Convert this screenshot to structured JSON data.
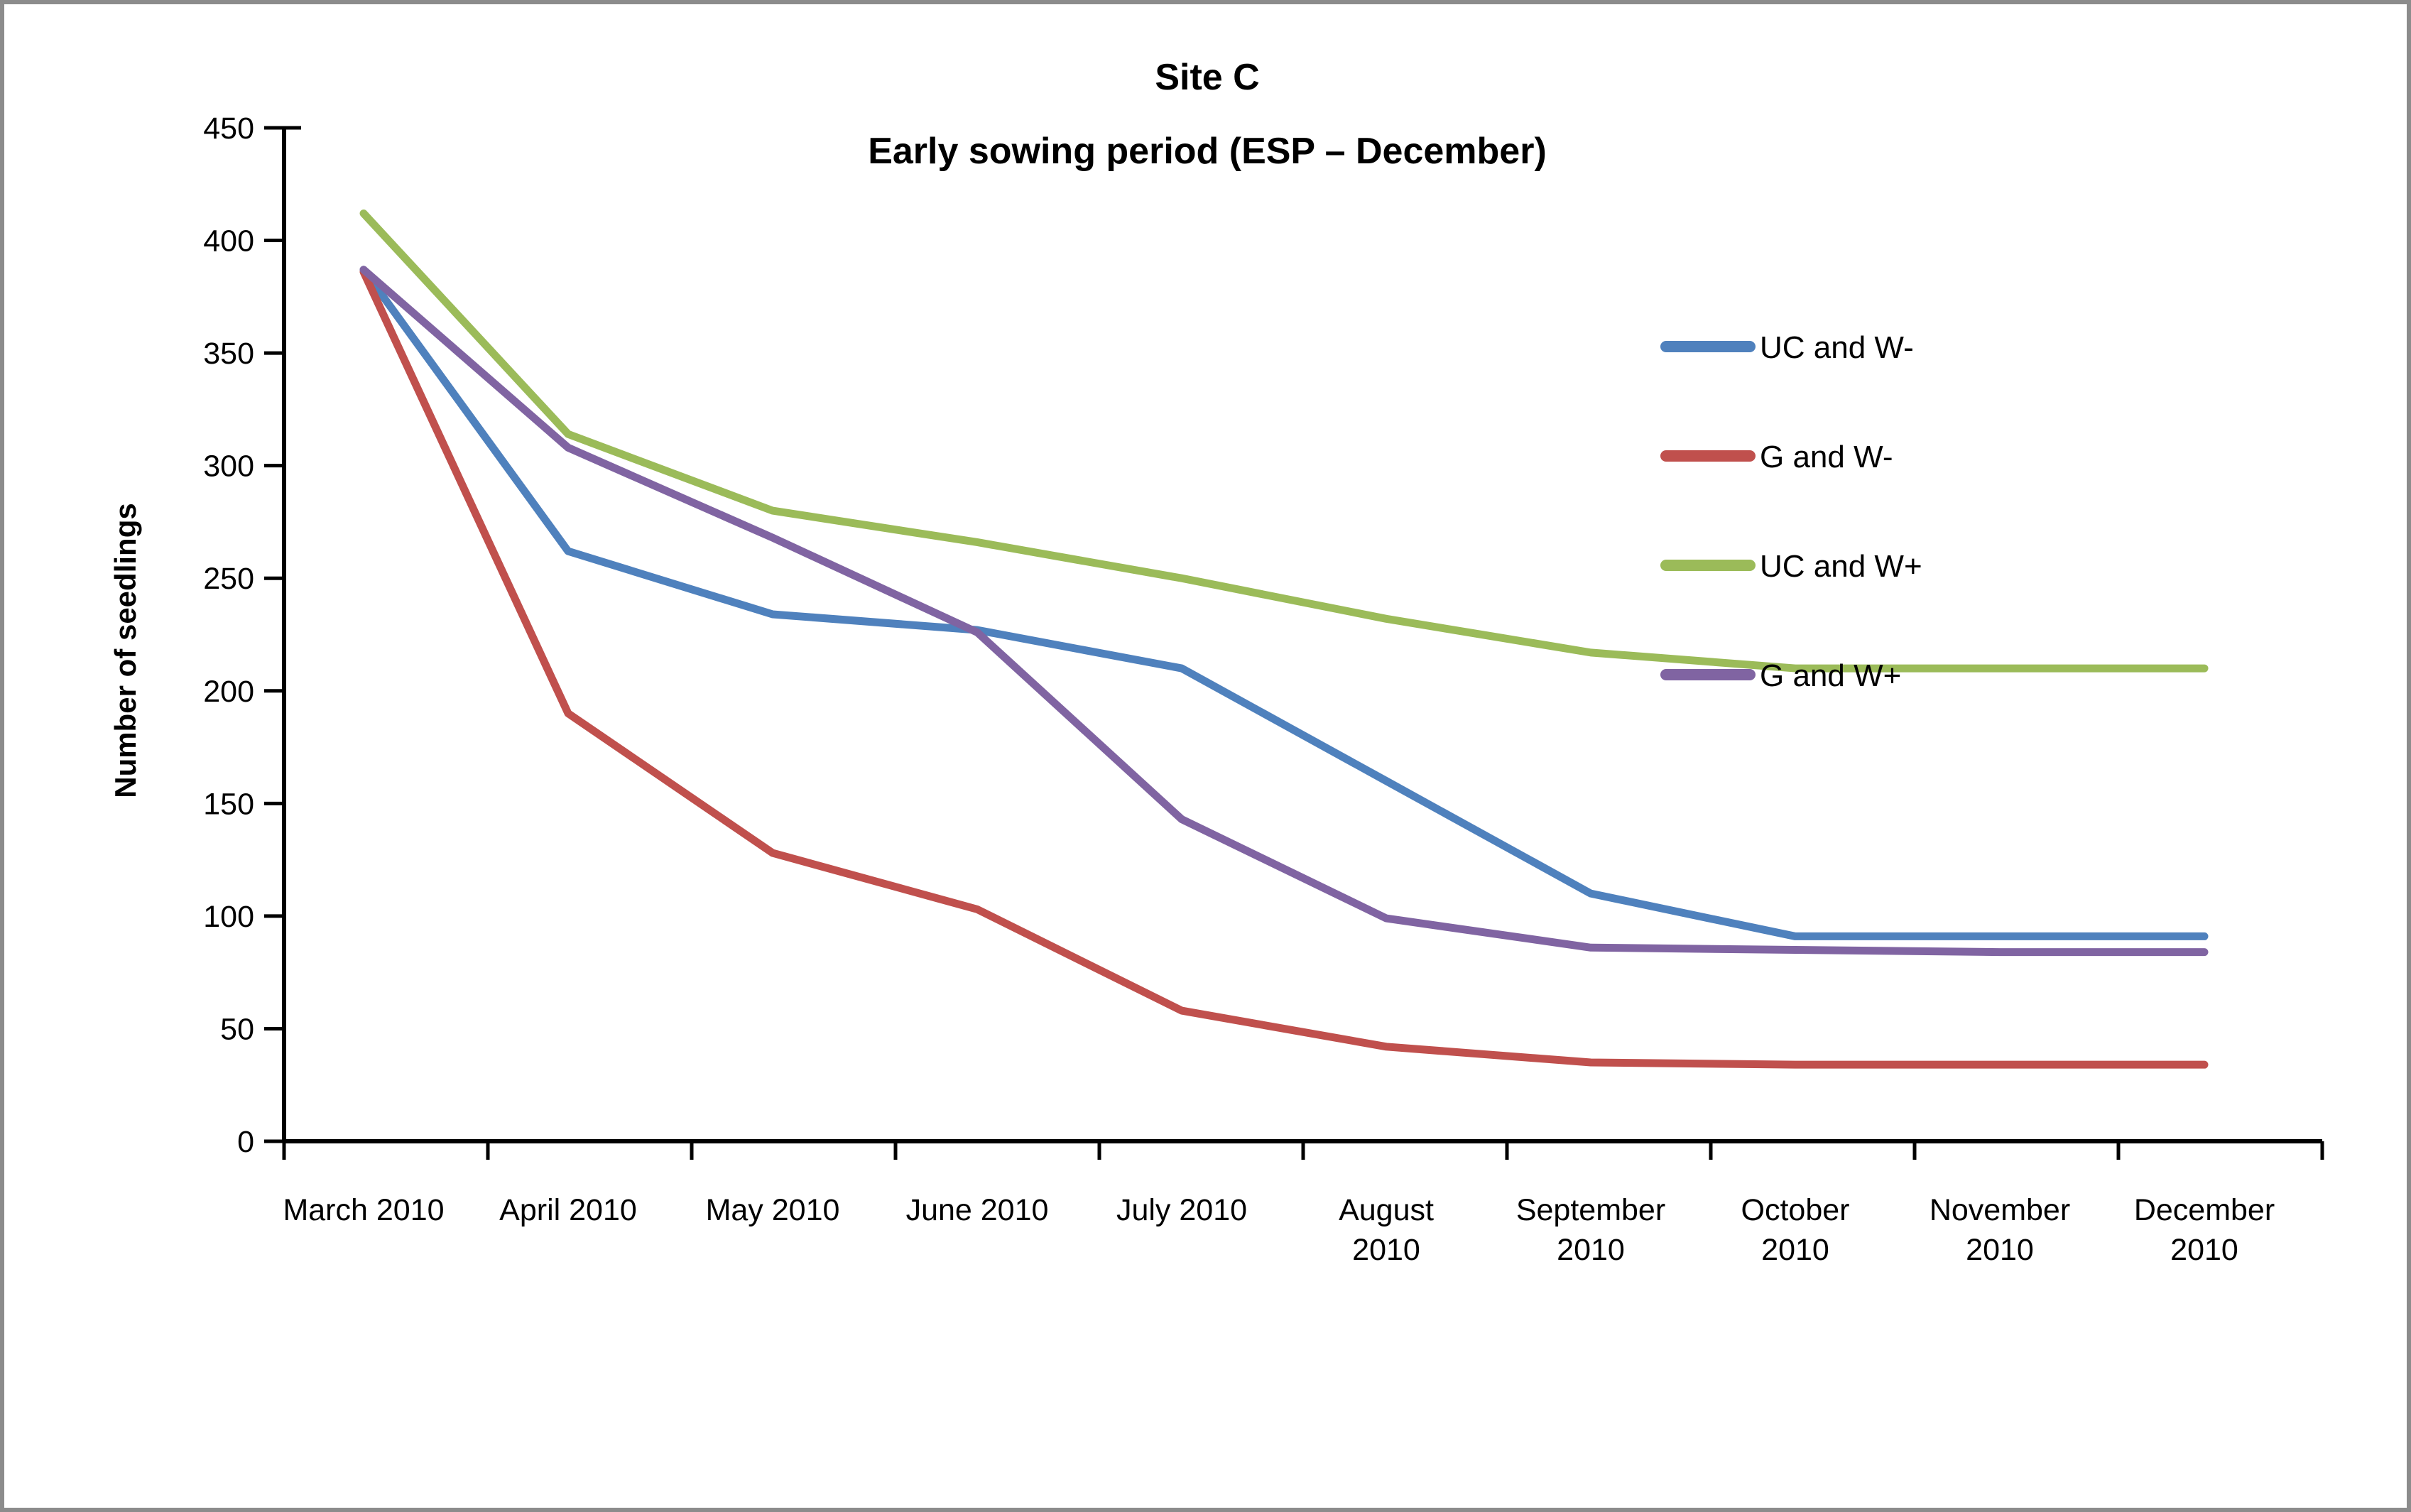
{
  "chart_data": {
    "type": "line",
    "title_lines": [
      "Site C",
      "Early sowing period (ESP – December)"
    ],
    "ylabel": "Number of seedlings",
    "xlabel": "",
    "ylim": [
      0,
      450
    ],
    "ytick_step": 50,
    "grid": false,
    "legend_position": "right",
    "categories": [
      "March 2010",
      "April 2010",
      "May 2010",
      "June 2010",
      "July 2010",
      "August 2010",
      "September 2010",
      "October 2010",
      "November 2010",
      "December 2010"
    ],
    "category_label_lines": [
      [
        "March 2010"
      ],
      [
        "April 2010"
      ],
      [
        "May 2010"
      ],
      [
        "June 2010"
      ],
      [
        "July 2010"
      ],
      [
        "August",
        "2010"
      ],
      [
        "September",
        "2010"
      ],
      [
        "October",
        "2010"
      ],
      [
        "November",
        "2010"
      ],
      [
        "December",
        "2010"
      ]
    ],
    "series": [
      {
        "name": "UC and W-",
        "color": "#4F81BD",
        "values": [
          387,
          262,
          234,
          227,
          210,
          160,
          110,
          91,
          91,
          91
        ]
      },
      {
        "name": "G and W-",
        "color": "#C0504D",
        "values": [
          386,
          190,
          128,
          103,
          58,
          42,
          35,
          34,
          34,
          34
        ]
      },
      {
        "name": "UC and W+",
        "color": "#9BBB59",
        "values": [
          412,
          314,
          280,
          266,
          250,
          232,
          217,
          210,
          210,
          210
        ]
      },
      {
        "name": "G and W+",
        "color": "#8064A2",
        "values": [
          387,
          308,
          268,
          226,
          143,
          99,
          86,
          85,
          84,
          84
        ]
      }
    ],
    "axis_color": "#000000",
    "ytick_labels": [
      "0",
      "50",
      "100",
      "150",
      "200",
      "250",
      "300",
      "350",
      "400",
      "450"
    ]
  }
}
